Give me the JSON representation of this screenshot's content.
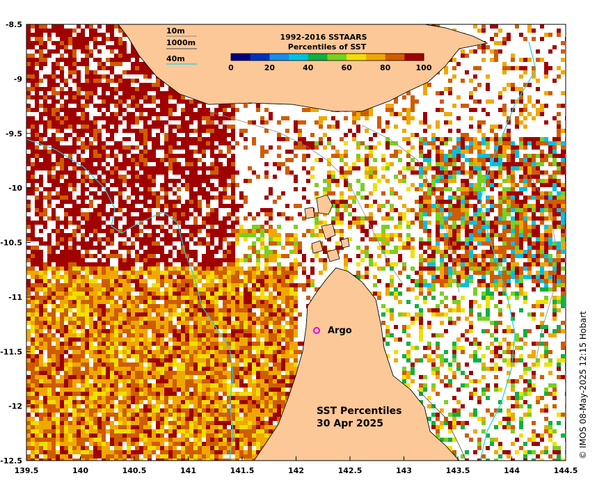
{
  "map": {
    "x_ticks": [
      "139.5",
      "140",
      "140.5",
      "141",
      "141.5",
      "142",
      "142.5",
      "143",
      "143.5",
      "144",
      "144.5"
    ],
    "y_ticks": [
      "-8.5",
      "-9",
      "-9.5",
      "-10",
      "-10.5",
      "-11",
      "-11.5",
      "-12",
      "-12.5"
    ],
    "lon_range": [
      139.5,
      144.5
    ],
    "lat_range": [
      -12.5,
      -8.5
    ],
    "land_color": "#fdc898",
    "contour_legend": {
      "items": [
        {
          "label": "10m",
          "color": "#888888"
        },
        {
          "label": "1000m",
          "color": "#444444"
        },
        {
          "label": "40m",
          "color": "#19d4e6"
        }
      ]
    },
    "colorbar": {
      "title_line1": "1992-2016 SSTAARS",
      "title_line2": "Percentiles of SST",
      "tick_labels": [
        "0",
        "20",
        "40",
        "60",
        "80",
        "100"
      ],
      "colors": [
        "#000080",
        "#0033bb",
        "#1a8ce6",
        "#00c0e0",
        "#10b040",
        "#78d020",
        "#f0e000",
        "#f0a800",
        "#d05c00",
        "#a00000"
      ]
    },
    "argo_label": "Argo",
    "argo_color": "#e000e0",
    "panel_title_line1": "SST Percentiles",
    "panel_title_line2": "30 Apr 2025",
    "credit": "© IMOS 08-May-2025 12:15 Hobart"
  }
}
